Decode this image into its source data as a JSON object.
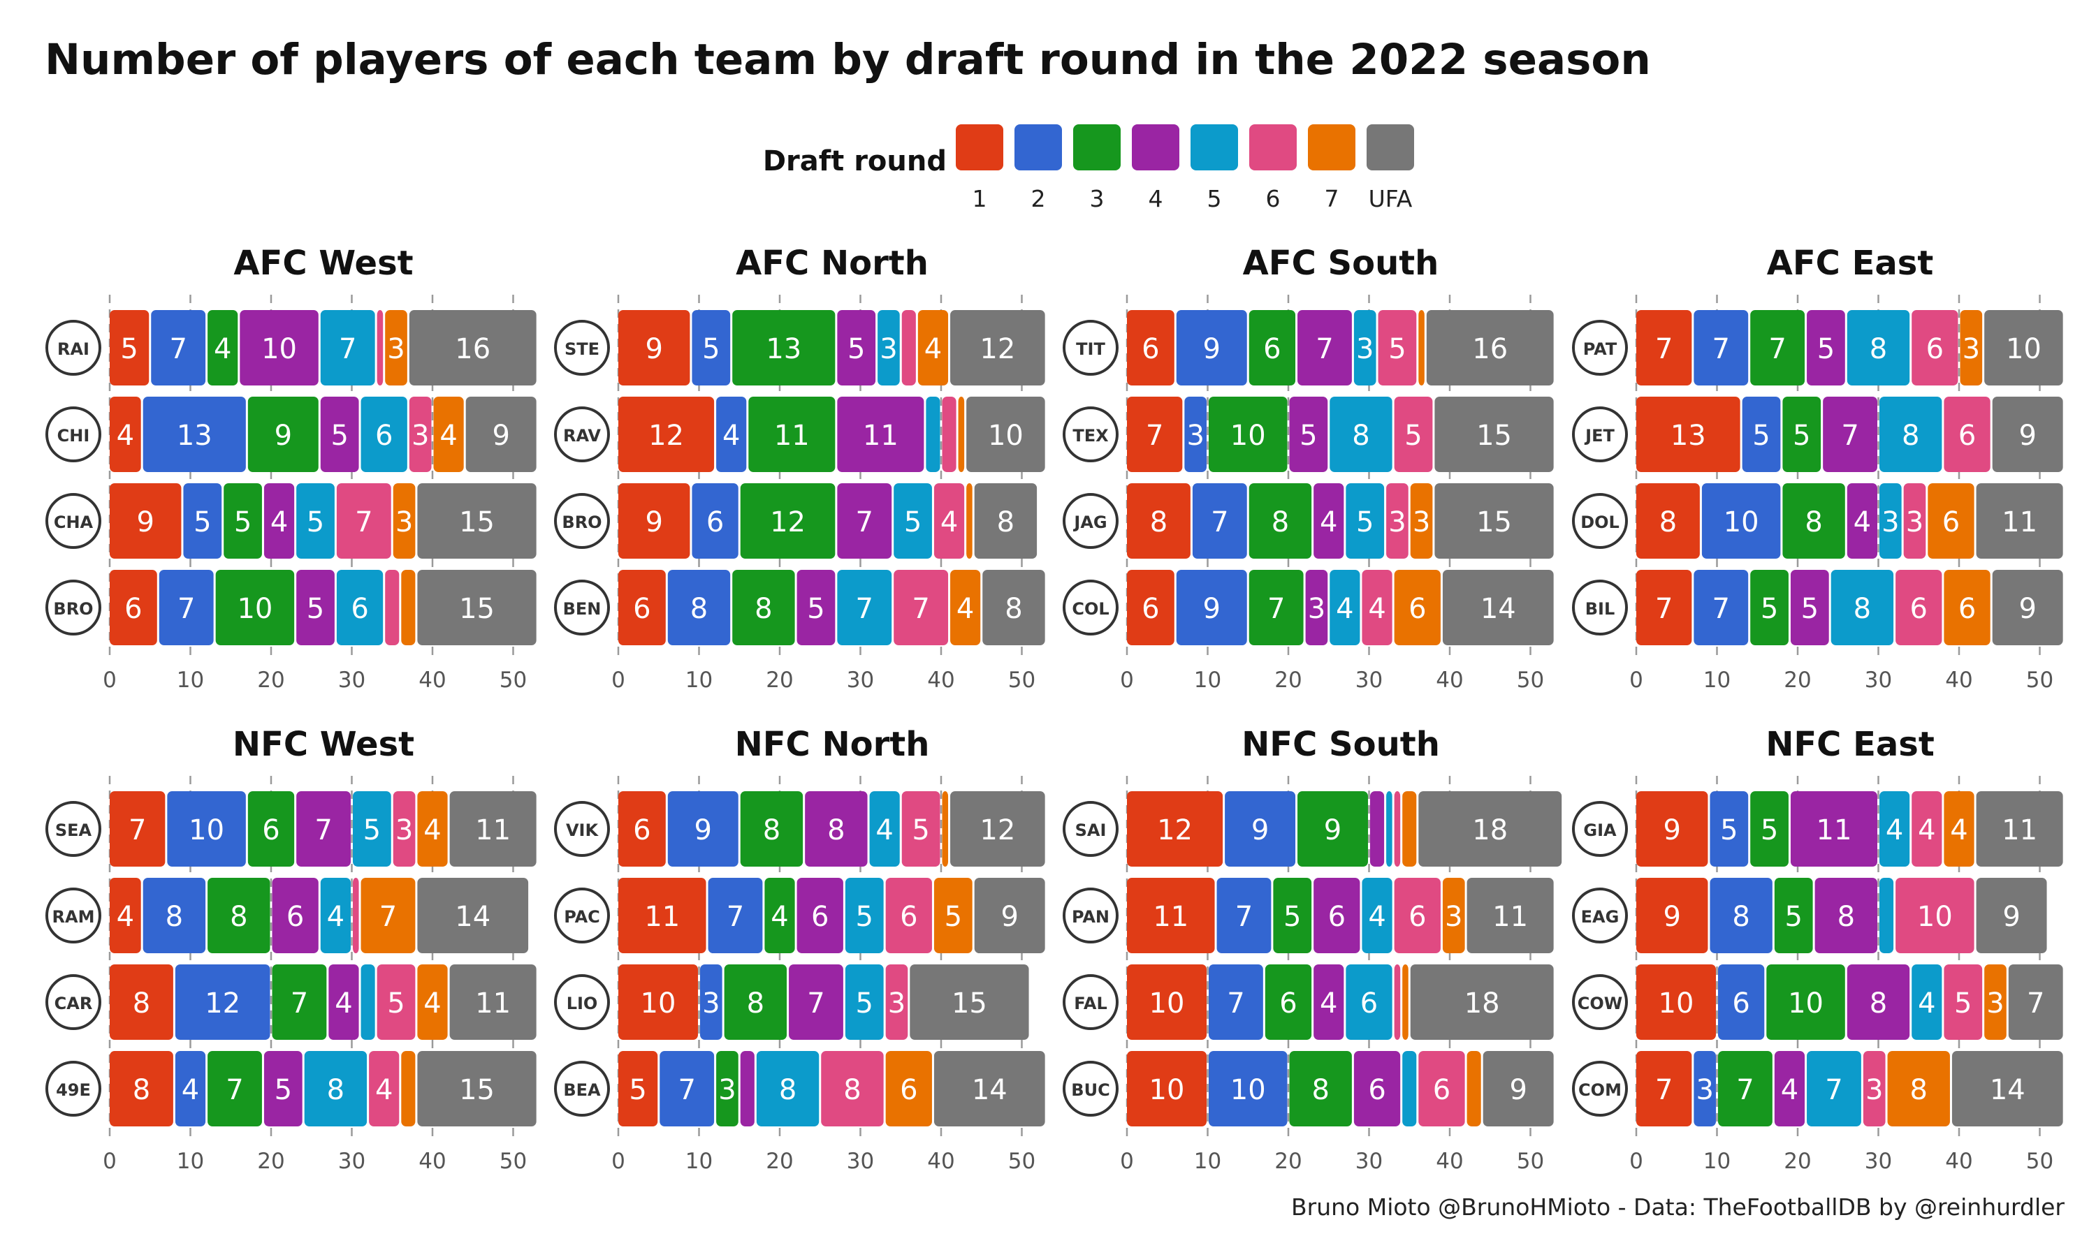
{
  "title": "Number of players of each team by draft round in the 2022 season",
  "caption": "Bruno Mioto @BrunoHMioto - Data: TheFootballDB by @reinhurdler",
  "legend": {
    "title": "Draft round",
    "placement": "top-center",
    "items": [
      {
        "label": "1",
        "color": "#E03C16"
      },
      {
        "label": "2",
        "color": "#3366D1"
      },
      {
        "label": "3",
        "color": "#16971E"
      },
      {
        "label": "4",
        "color": "#9A25A3"
      },
      {
        "label": "5",
        "color": "#0C9BCB"
      },
      {
        "label": "6",
        "color": "#E04A82"
      },
      {
        "label": "7",
        "color": "#E97200"
      },
      {
        "label": "UFA",
        "color": "#777777"
      }
    ]
  },
  "chart_data": {
    "type": "bar",
    "orientation": "horizontal-stacked",
    "xlim": [
      0,
      53
    ],
    "xticks": [
      "0",
      "10",
      "20",
      "30",
      "40",
      "50"
    ],
    "grid": "vertical dashed at ticks",
    "panels": [
      {
        "name": "AFC West",
        "teams": [
          {
            "team": "Las Vegas Raiders",
            "icon": "raiders-logo",
            "values": [
              5,
              7,
              4,
              10,
              7,
              1,
              3,
              16
            ]
          },
          {
            "team": "Kansas City Chiefs",
            "icon": "chiefs-logo",
            "values": [
              4,
              13,
              9,
              5,
              6,
              3,
              4,
              9
            ]
          },
          {
            "team": "Los Angeles Chargers",
            "icon": "chargers-logo",
            "values": [
              9,
              5,
              5,
              4,
              5,
              7,
              3,
              15
            ]
          },
          {
            "team": "Denver Broncos",
            "icon": "broncos-logo",
            "values": [
              6,
              7,
              10,
              5,
              6,
              2,
              2,
              15
            ]
          }
        ]
      },
      {
        "name": "AFC North",
        "teams": [
          {
            "team": "Pittsburgh Steelers",
            "icon": "steelers-logo",
            "values": [
              9,
              5,
              13,
              5,
              3,
              2,
              4,
              12
            ]
          },
          {
            "team": "Baltimore Ravens",
            "icon": "ravens-logo",
            "values": [
              12,
              4,
              11,
              11,
              2,
              2,
              1,
              10
            ]
          },
          {
            "team": "Cleveland Browns",
            "icon": "browns-logo",
            "values": [
              9,
              6,
              12,
              7,
              5,
              4,
              1,
              8
            ]
          },
          {
            "team": "Cincinnati Bengals",
            "icon": "bengals-logo",
            "values": [
              6,
              8,
              8,
              5,
              7,
              7,
              4,
              8
            ]
          }
        ]
      },
      {
        "name": "AFC South",
        "teams": [
          {
            "team": "Tennessee Titans",
            "icon": "titans-logo",
            "values": [
              6,
              9,
              6,
              7,
              3,
              5,
              1,
              16
            ]
          },
          {
            "team": "Houston Texans",
            "icon": "texans-logo",
            "values": [
              7,
              3,
              10,
              5,
              8,
              5,
              0,
              15
            ]
          },
          {
            "team": "Jacksonville Jaguars",
            "icon": "jaguars-logo",
            "values": [
              8,
              7,
              8,
              4,
              5,
              3,
              3,
              15
            ]
          },
          {
            "team": "Indianapolis Colts",
            "icon": "colts-logo",
            "values": [
              6,
              9,
              7,
              3,
              4,
              4,
              6,
              14
            ]
          }
        ]
      },
      {
        "name": "AFC East",
        "teams": [
          {
            "team": "New England Patriots",
            "icon": "patriots-logo",
            "values": [
              7,
              7,
              7,
              5,
              8,
              6,
              3,
              10
            ]
          },
          {
            "team": "New York Jets",
            "icon": "jets-logo",
            "values": [
              13,
              5,
              5,
              7,
              8,
              6,
              0,
              9
            ]
          },
          {
            "team": "Miami Dolphins",
            "icon": "dolphins-logo",
            "values": [
              8,
              10,
              8,
              4,
              3,
              3,
              6,
              11
            ]
          },
          {
            "team": "Buffalo Bills",
            "icon": "bills-logo",
            "values": [
              7,
              7,
              5,
              5,
              8,
              6,
              6,
              9
            ]
          }
        ]
      },
      {
        "name": "NFC West",
        "teams": [
          {
            "team": "Seattle Seahawks",
            "icon": "seahawks-logo",
            "values": [
              7,
              10,
              6,
              7,
              5,
              3,
              4,
              11
            ]
          },
          {
            "team": "Los Angeles Rams",
            "icon": "rams-logo",
            "values": [
              4,
              8,
              8,
              6,
              4,
              1,
              7,
              14
            ]
          },
          {
            "team": "Arizona Cardinals",
            "icon": "cardinals-logo",
            "values": [
              8,
              12,
              7,
              4,
              2,
              5,
              4,
              11
            ]
          },
          {
            "team": "San Francisco 49ers",
            "icon": "49ers-logo",
            "values": [
              8,
              4,
              7,
              5,
              8,
              4,
              2,
              15
            ]
          }
        ]
      },
      {
        "name": "NFC North",
        "teams": [
          {
            "team": "Minnesota Vikings",
            "icon": "vikings-logo",
            "values": [
              6,
              9,
              8,
              8,
              4,
              5,
              1,
              12
            ]
          },
          {
            "team": "Green Bay Packers",
            "icon": "packers-logo",
            "values": [
              11,
              7,
              4,
              6,
              5,
              6,
              5,
              9
            ]
          },
          {
            "team": "Detroit Lions",
            "icon": "lions-logo",
            "values": [
              10,
              3,
              8,
              7,
              5,
              3,
              0,
              15
            ]
          },
          {
            "team": "Chicago Bears",
            "icon": "bears-logo",
            "values": [
              5,
              7,
              3,
              2,
              8,
              8,
              6,
              14
            ]
          }
        ]
      },
      {
        "name": "NFC South",
        "teams": [
          {
            "team": "New Orleans Saints",
            "icon": "saints-logo",
            "values": [
              12,
              9,
              9,
              2,
              1,
              1,
              2,
              18
            ]
          },
          {
            "team": "Carolina Panthers",
            "icon": "panthers-logo",
            "values": [
              11,
              7,
              5,
              6,
              4,
              6,
              3,
              11
            ]
          },
          {
            "team": "Atlanta Falcons",
            "icon": "falcons-logo",
            "values": [
              10,
              7,
              6,
              4,
              6,
              1,
              1,
              18
            ]
          },
          {
            "team": "Tampa Bay Buccaneers",
            "icon": "buccaneers-logo",
            "values": [
              10,
              10,
              8,
              6,
              2,
              6,
              2,
              9
            ]
          }
        ]
      },
      {
        "name": "NFC East",
        "teams": [
          {
            "team": "New York Giants",
            "icon": "giants-logo",
            "values": [
              9,
              5,
              5,
              11,
              4,
              4,
              4,
              11
            ]
          },
          {
            "team": "Philadelphia Eagles",
            "icon": "eagles-logo",
            "values": [
              9,
              8,
              5,
              8,
              2,
              10,
              0,
              9
            ]
          },
          {
            "team": "Dallas Cowboys",
            "icon": "cowboys-logo",
            "values": [
              10,
              6,
              10,
              8,
              4,
              5,
              3,
              7
            ]
          },
          {
            "team": "Washington Commanders",
            "icon": "commanders-logo",
            "values": [
              7,
              3,
              7,
              4,
              7,
              3,
              8,
              14
            ]
          }
        ]
      }
    ]
  }
}
